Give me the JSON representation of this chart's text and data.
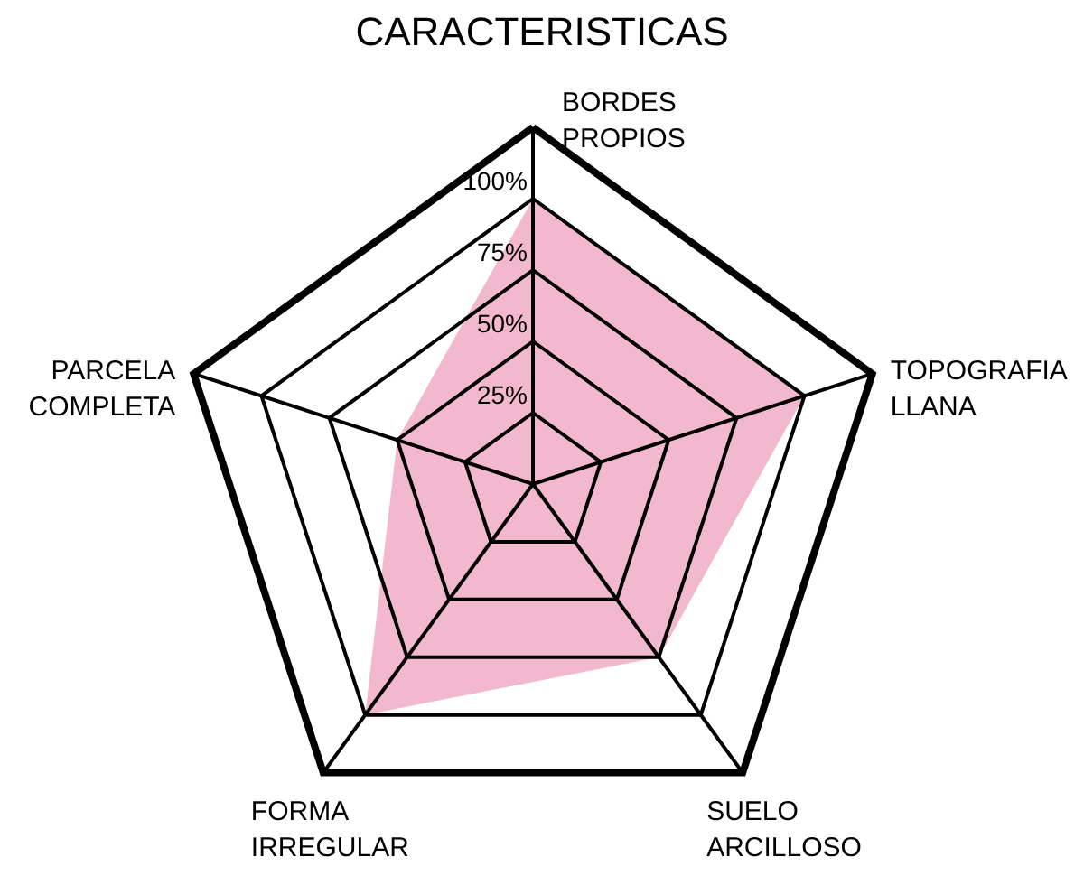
{
  "chart_data": {
    "type": "radar",
    "title": "CARACTERISTICAS",
    "categories": [
      "BORDES PROPIOS",
      "TOPOGRAFIA LLANA",
      "SUELO ARCILLOSO",
      "FORMA IRREGULAR",
      "PARCELA COMPLETA"
    ],
    "series": [
      {
        "color": "#f2b8cd",
        "values": [
          100,
          100,
          75,
          100,
          50
        ]
      }
    ],
    "ylim": [
      0,
      125
    ],
    "yticks": [
      {
        "value": 25,
        "label": "25%"
      },
      {
        "value": 50,
        "label": "50%"
      },
      {
        "value": 75,
        "label": "75%"
      },
      {
        "value": 100,
        "label": "100%"
      }
    ],
    "grid": true
  }
}
